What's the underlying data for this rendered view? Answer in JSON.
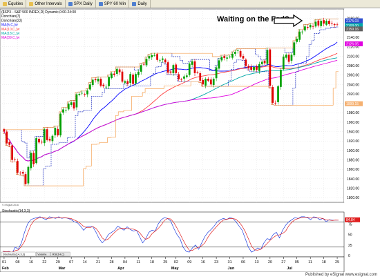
{
  "toolbar": {
    "items": [
      {
        "label": "Equities",
        "icon": "folder-icon"
      },
      {
        "label": "Other Intervals",
        "icon": "folder-icon"
      },
      {
        "label": "SPX Daily",
        "icon": "chart-icon"
      },
      {
        "label": "SPY 60 Min",
        "icon": "chart-icon"
      },
      {
        "label": "Daily",
        "icon": "chart-icon"
      }
    ]
  },
  "legend": [
    {
      "label": "($SPX - S&P 500 INDEX,D) Dynamic,0:00-24:00",
      "color": "#000000"
    },
    {
      "label": "Donchian(7)",
      "color": "#000000"
    },
    {
      "label": "Donchian(22)",
      "color": "#000000"
    },
    {
      "label": "MA(5,C,)w",
      "color": "#0000ff"
    },
    {
      "label": "MA(10,C,)w",
      "color": "#ff4040"
    },
    {
      "label": "MA(18,C,)w",
      "color": "#00a8a8"
    },
    {
      "label": "MA(39,C,)w",
      "color": "#e000e0"
    }
  ],
  "stoch_label": "Stochastic(14,3,3)",
  "stoch_value": "84.84",
  "copyright": "© eSignal 2016",
  "tabs": [
    "Stochastic(14,3,3)",
    "Volume",
    "RSI(14,C)"
  ],
  "footer": "Published by eSignal www.esignal.com",
  "chart_data": {
    "type": "candlestick",
    "annotation": "Waiting on the Fed?",
    "price_axis": {
      "min": 1790,
      "max": 2200,
      "ticks": [
        1800,
        1820,
        1840,
        1860,
        1880,
        1900,
        1920,
        1940,
        1960,
        1980,
        2000,
        2020,
        2040,
        2060,
        2080,
        2100,
        2120,
        2140,
        2160,
        2180
      ]
    },
    "price_boxes": [
      {
        "value": 2175.03,
        "label": "2175.03",
        "color": "#3050d0"
      },
      {
        "value": 2168.0,
        "label": "2168.00",
        "color": "#00a8a8"
      },
      {
        "value": 2159.16,
        "label": "2159.16",
        "color": "#606060"
      },
      {
        "value": 2126.05,
        "label": "2126.05",
        "color": "#e000e0"
      },
      {
        "value": 1999.15,
        "label": "1999.15",
        "color": "#f5b070"
      }
    ],
    "stoch_axis": {
      "min": 0,
      "max": 100,
      "ticks": [
        0,
        25,
        50,
        75
      ]
    },
    "stoch_overbought": 80,
    "stoch_oversold": 20,
    "date_ticks": [
      "01",
      "08",
      "16",
      "22",
      "29",
      "07",
      "14",
      "21",
      "28",
      "04",
      "11",
      "18",
      "25",
      "02",
      "09",
      "16",
      "23",
      "31",
      "06",
      "13",
      "20",
      "27",
      "05",
      "11",
      "18",
      "25"
    ],
    "month_labels": [
      {
        "label": "Feb",
        "at": 0
      },
      {
        "label": "Mar",
        "at": 21
      },
      {
        "label": "Apr",
        "at": 43
      },
      {
        "label": "May",
        "at": 63
      },
      {
        "label": "Jun",
        "at": 84
      },
      {
        "label": "Jul",
        "at": 106
      }
    ],
    "closes": [
      1940,
      1915,
      1912,
      1880,
      1880,
      1853,
      1852,
      1851,
      1829,
      1865,
      1895,
      1871,
      1926,
      1917,
      1918,
      1945,
      1922,
      1921,
      1931,
      1948,
      1932,
      1978,
      1987,
      1986,
      1999,
      2002,
      1989,
      2019,
      2020,
      2022,
      2019,
      2027,
      2040,
      2050,
      2049,
      2052,
      2037,
      2036,
      2035,
      2056,
      2063,
      2060,
      2073,
      2066,
      2046,
      2047,
      2041,
      2062,
      2041,
      2062,
      2067,
      2081,
      2082,
      2094,
      2100,
      2102,
      2102,
      2092,
      2091,
      2095,
      2087,
      2065,
      2065,
      2081,
      2064,
      2051,
      2050,
      2057,
      2059,
      2084,
      2089,
      2064,
      2065,
      2048,
      2040,
      2052,
      2048,
      2040,
      2052,
      2076,
      2091,
      2098,
      2096,
      2097,
      2099,
      2105,
      2109,
      2112,
      2099,
      2095,
      2079,
      2075,
      2071,
      2077,
      2071,
      2083,
      2088,
      2085,
      2113,
      2037,
      2001,
      2000,
      2036,
      2071,
      2099,
      2103,
      2088,
      2103,
      2129,
      2137,
      2152,
      2152,
      2163,
      2160,
      2166,
      2163,
      2173,
      2165,
      2175,
      2169,
      2175,
      2168,
      2169,
      2166,
      2167
    ],
    "stochastic_k": [
      10,
      8,
      10,
      5,
      20,
      15,
      30,
      55,
      75,
      85,
      88,
      90,
      92,
      88,
      85,
      92,
      90,
      88,
      92,
      88,
      90,
      88,
      85,
      80,
      78,
      70,
      60,
      68,
      70,
      68,
      55,
      40,
      30,
      38,
      50,
      55,
      60,
      70,
      65,
      60,
      68,
      62,
      58,
      60,
      45,
      30,
      40,
      55,
      60,
      58,
      75,
      85,
      90,
      88,
      82,
      65,
      50,
      40,
      20,
      10,
      8,
      18,
      25,
      15,
      30,
      45,
      55,
      62,
      70,
      80,
      85,
      88,
      85,
      90,
      88,
      80,
      70,
      60,
      40,
      20,
      8,
      12,
      18,
      15,
      30,
      40,
      38,
      50,
      55,
      42,
      60,
      72,
      80,
      85,
      90,
      88,
      92,
      92,
      90,
      85,
      92,
      90,
      85,
      88,
      80,
      85,
      84,
      84,
      84
    ]
  }
}
